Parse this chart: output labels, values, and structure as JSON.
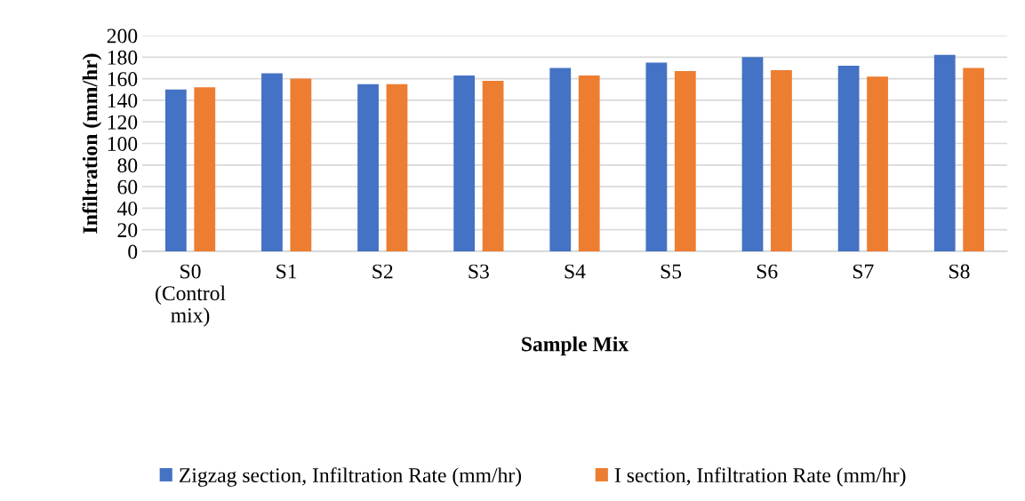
{
  "chart_data": {
    "type": "bar",
    "xlabel": "Sample Mix",
    "ylabel": "Infiltration (mm/hr)",
    "categories": [
      "S0\n(Control\nmix)",
      "S1",
      "S2",
      "S3",
      "S4",
      "S5",
      "S6",
      "S7",
      "S8"
    ],
    "series": [
      {
        "name": "Zigzag section, Infiltration Rate (mm/hr)",
        "color": "#4472c4",
        "values": [
          150,
          165,
          155,
          163,
          170,
          175,
          180,
          172,
          182
        ]
      },
      {
        "name": "I section, Infiltration Rate (mm/hr)",
        "color": "#ed7d31",
        "values": [
          152,
          160,
          155,
          158,
          163,
          167,
          168,
          162,
          170
        ]
      }
    ],
    "ylim": [
      0,
      200
    ],
    "yticks": [
      0,
      20,
      40,
      60,
      80,
      100,
      120,
      140,
      160,
      180,
      200
    ],
    "grid": "y",
    "legend": "bottom"
  }
}
